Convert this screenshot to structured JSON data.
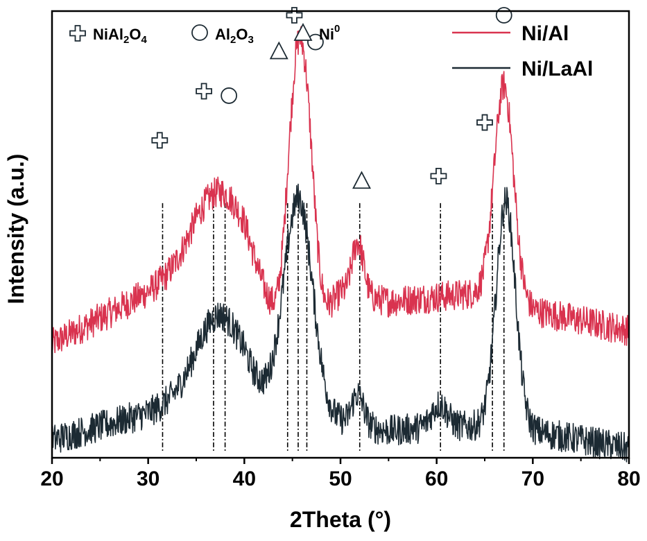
{
  "chart_data": {
    "type": "line",
    "xlabel": "2Theta (°)",
    "ylabel": "Intensity (a.u.)",
    "xlim": [
      20,
      80
    ],
    "x_ticks": [
      20,
      30,
      40,
      50,
      60,
      70,
      80
    ],
    "y_ticks_shown": false,
    "grid": false,
    "legend_position": "top-right",
    "colors": {
      "Ni/Al": "#d9334f",
      "Ni/LaAl": "#1c2a33",
      "reference": "#000000"
    },
    "series": [
      {
        "name": "Ni/Al",
        "color": "#d9334f",
        "baseline_profile": [
          [
            20,
            0.255
          ],
          [
            30,
            0.37
          ],
          [
            35,
            0.43
          ],
          [
            40,
            0.42
          ],
          [
            45,
            0.24
          ],
          [
            50,
            0.37
          ],
          [
            55,
            0.35
          ],
          [
            60,
            0.36
          ],
          [
            65,
            0.37
          ],
          [
            70,
            0.33
          ],
          [
            80,
            0.285
          ]
        ],
        "peaks": [
          {
            "center": 37.5,
            "height": 0.17,
            "width": 2.6
          },
          {
            "center": 45.3,
            "height": 0.55,
            "width": 0.9
          },
          {
            "center": 46.6,
            "height": 0.34,
            "width": 0.8
          },
          {
            "center": 51.8,
            "height": 0.12,
            "width": 0.6
          },
          {
            "center": 67.0,
            "height": 0.48,
            "width": 1.0
          }
        ],
        "noise_amplitude": 0.035
      },
      {
        "name": "Ni/LaAl",
        "color": "#1c2a33",
        "baseline_profile": [
          [
            20,
            0.04
          ],
          [
            30,
            0.1
          ],
          [
            35,
            0.15
          ],
          [
            40,
            0.17
          ],
          [
            45,
            0.07
          ],
          [
            50,
            0.08
          ],
          [
            55,
            0.06
          ],
          [
            60,
            0.07
          ],
          [
            65,
            0.07
          ],
          [
            70,
            0.06
          ],
          [
            80,
            0.02
          ]
        ],
        "peaks": [
          {
            "center": 37.3,
            "height": 0.16,
            "width": 2.2
          },
          {
            "center": 45.6,
            "height": 0.51,
            "width": 1.5
          },
          {
            "center": 51.8,
            "height": 0.07,
            "width": 0.6
          },
          {
            "center": 60.3,
            "height": 0.05,
            "width": 0.8
          },
          {
            "center": 67.2,
            "height": 0.51,
            "width": 1.0
          }
        ],
        "noise_amplitude": 0.035
      }
    ],
    "reference_lines": [
      31.5,
      36.8,
      38.0,
      44.5,
      45.6,
      46.5,
      52.0,
      60.4,
      65.8,
      67.0
    ],
    "phase_markers": [
      {
        "phase": "NiAl2O4",
        "symbol": "cross",
        "positions": [
          {
            "x": 31.2,
            "y": 0.72
          },
          {
            "x": 35.8,
            "y": 0.83
          },
          {
            "x": 45.2,
            "y": 1.0
          },
          {
            "x": 60.2,
            "y": 0.64
          },
          {
            "x": 65.0,
            "y": 0.76
          }
        ]
      },
      {
        "phase": "Al2O3",
        "symbol": "circle",
        "positions": [
          {
            "x": 38.4,
            "y": 0.82
          },
          {
            "x": 47.4,
            "y": 0.94
          },
          {
            "x": 67.0,
            "y": 1.0
          }
        ]
      },
      {
        "phase": "Ni0",
        "symbol": "triangle",
        "positions": [
          {
            "x": 43.6,
            "y": 0.92
          },
          {
            "x": 52.2,
            "y": 0.63
          }
        ]
      }
    ]
  },
  "legend": {
    "phases": [
      {
        "symbol": "cross",
        "main": "NiAl",
        "sub1": "2",
        "mid": "O",
        "sub2": "4"
      },
      {
        "symbol": "circle",
        "main": "Al",
        "sub1": "2",
        "mid": "O",
        "sub2": "3"
      },
      {
        "symbol": "triangle",
        "main": "Ni",
        "sup": "0"
      }
    ],
    "samples": [
      {
        "label": "Ni/Al",
        "color": "#d9334f"
      },
      {
        "label": "Ni/LaAl",
        "color": "#1c2a33"
      }
    ]
  }
}
